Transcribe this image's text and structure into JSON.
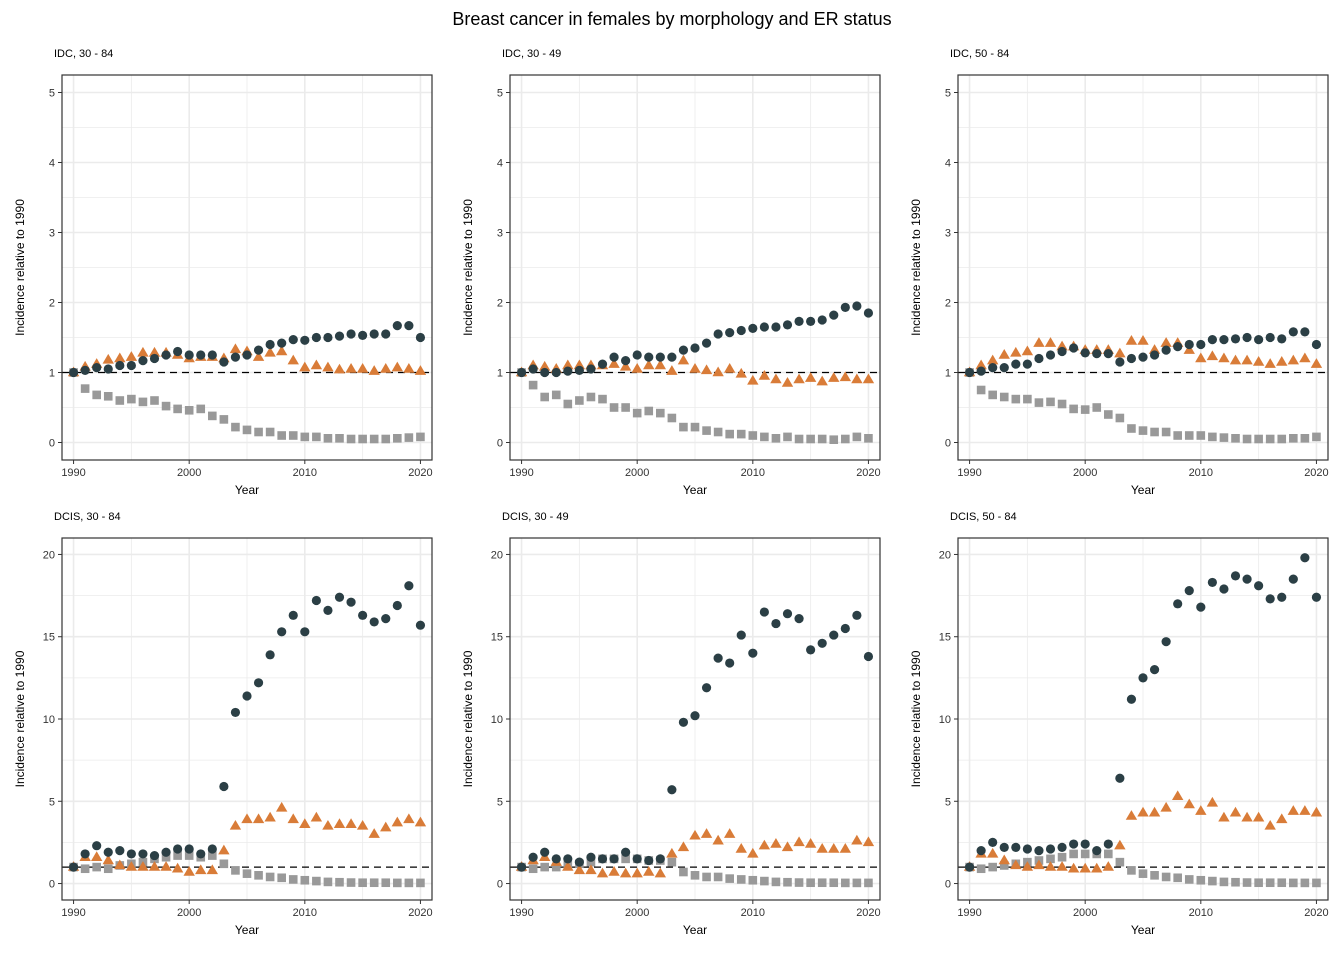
{
  "title": "Breast cancer in females by morphology and ER status",
  "colors": {
    "circle_series": "#2b3f45",
    "triangle_series": "#d97c38",
    "square_series": "#999999",
    "gridline": "#ebebeb",
    "reference_line": "#000000"
  },
  "chart_data": [
    {
      "type": "scatter",
      "title": "IDC, 30 - 84",
      "xlabel": "Year",
      "ylabel": "Incidence relative to 1990",
      "xlim": [
        1989,
        2021
      ],
      "ylim": [
        -0.25,
        5.25
      ],
      "xticks": [
        1990,
        2000,
        2010,
        2020
      ],
      "yticks": [
        0,
        1,
        2,
        3,
        4,
        5
      ],
      "grid": true,
      "reference_line_y": 1,
      "x": [
        1990,
        1991,
        1992,
        1993,
        1994,
        1995,
        1996,
        1997,
        1998,
        1999,
        2000,
        2001,
        2002,
        2003,
        2004,
        2005,
        2006,
        2007,
        2008,
        2009,
        2010,
        2011,
        2012,
        2013,
        2014,
        2015,
        2016,
        2017,
        2018,
        2019,
        2020
      ],
      "series": [
        {
          "marker": "circle",
          "values": [
            1.0,
            1.03,
            1.07,
            1.05,
            1.1,
            1.1,
            1.17,
            1.2,
            1.25,
            1.3,
            1.25,
            1.25,
            1.25,
            1.15,
            1.22,
            1.25,
            1.32,
            1.4,
            1.42,
            1.47,
            1.46,
            1.5,
            1.5,
            1.52,
            1.55,
            1.53,
            1.55,
            1.55,
            1.67,
            1.67,
            1.5
          ]
        },
        {
          "marker": "triangle",
          "values": [
            1.0,
            1.08,
            1.12,
            1.18,
            1.2,
            1.22,
            1.28,
            1.28,
            1.28,
            1.25,
            1.2,
            1.22,
            1.22,
            1.2,
            1.33,
            1.3,
            1.22,
            1.28,
            1.3,
            1.17,
            1.07,
            1.1,
            1.07,
            1.04,
            1.05,
            1.05,
            1.02,
            1.05,
            1.07,
            1.05,
            1.02
          ]
        },
        {
          "marker": "square",
          "values": [
            1.0,
            0.77,
            0.68,
            0.66,
            0.6,
            0.62,
            0.58,
            0.6,
            0.52,
            0.48,
            0.46,
            0.48,
            0.38,
            0.33,
            0.22,
            0.18,
            0.15,
            0.15,
            0.1,
            0.1,
            0.08,
            0.08,
            0.06,
            0.06,
            0.05,
            0.05,
            0.05,
            0.05,
            0.06,
            0.07,
            0.08
          ]
        }
      ]
    },
    {
      "type": "scatter",
      "title": "IDC, 30 - 49",
      "xlabel": "Year",
      "ylabel": "Incidence relative to 1990",
      "xlim": [
        1989,
        2021
      ],
      "ylim": [
        -0.25,
        5.25
      ],
      "xticks": [
        1990,
        2000,
        2010,
        2020
      ],
      "yticks": [
        0,
        1,
        2,
        3,
        4,
        5
      ],
      "grid": true,
      "reference_line_y": 1,
      "x": [
        1990,
        1991,
        1992,
        1993,
        1994,
        1995,
        1996,
        1997,
        1998,
        1999,
        2000,
        2001,
        2002,
        2003,
        2004,
        2005,
        2006,
        2007,
        2008,
        2009,
        2010,
        2011,
        2012,
        2013,
        2014,
        2015,
        2016,
        2017,
        2018,
        2019,
        2020
      ],
      "series": [
        {
          "marker": "circle",
          "values": [
            1.0,
            1.05,
            1.0,
            1.0,
            1.02,
            1.03,
            1.05,
            1.12,
            1.22,
            1.17,
            1.25,
            1.22,
            1.22,
            1.22,
            1.32,
            1.35,
            1.42,
            1.55,
            1.57,
            1.6,
            1.63,
            1.65,
            1.65,
            1.68,
            1.73,
            1.73,
            1.75,
            1.82,
            1.93,
            1.95,
            1.85
          ]
        },
        {
          "marker": "triangle",
          "values": [
            1.0,
            1.1,
            1.08,
            1.05,
            1.1,
            1.1,
            1.1,
            1.1,
            1.12,
            1.08,
            1.05,
            1.1,
            1.1,
            1.02,
            1.17,
            1.05,
            1.03,
            1.0,
            1.05,
            0.98,
            0.88,
            0.95,
            0.9,
            0.85,
            0.9,
            0.92,
            0.87,
            0.92,
            0.93,
            0.9,
            0.9
          ]
        },
        {
          "marker": "square",
          "values": [
            1.0,
            0.82,
            0.65,
            0.68,
            0.55,
            0.6,
            0.65,
            0.62,
            0.5,
            0.5,
            0.42,
            0.45,
            0.42,
            0.35,
            0.22,
            0.22,
            0.17,
            0.15,
            0.12,
            0.12,
            0.1,
            0.08,
            0.06,
            0.08,
            0.05,
            0.05,
            0.05,
            0.04,
            0.05,
            0.08,
            0.06
          ]
        }
      ]
    },
    {
      "type": "scatter",
      "title": "IDC, 50 - 84",
      "xlabel": "Year",
      "ylabel": "Incidence relative to 1990",
      "xlim": [
        1989,
        2021
      ],
      "ylim": [
        -0.25,
        5.25
      ],
      "xticks": [
        1990,
        2000,
        2010,
        2020
      ],
      "yticks": [
        0,
        1,
        2,
        3,
        4,
        5
      ],
      "grid": true,
      "reference_line_y": 1,
      "x": [
        1990,
        1991,
        1992,
        1993,
        1994,
        1995,
        1996,
        1997,
        1998,
        1999,
        2000,
        2001,
        2002,
        2003,
        2004,
        2005,
        2006,
        2007,
        2008,
        2009,
        2010,
        2011,
        2012,
        2013,
        2014,
        2015,
        2016,
        2017,
        2018,
        2019,
        2020
      ],
      "series": [
        {
          "marker": "circle",
          "values": [
            1.0,
            1.02,
            1.07,
            1.07,
            1.12,
            1.12,
            1.2,
            1.25,
            1.3,
            1.35,
            1.28,
            1.27,
            1.27,
            1.15,
            1.2,
            1.22,
            1.25,
            1.32,
            1.37,
            1.4,
            1.4,
            1.47,
            1.47,
            1.48,
            1.5,
            1.47,
            1.5,
            1.48,
            1.58,
            1.58,
            1.4
          ]
        },
        {
          "marker": "triangle",
          "values": [
            1.0,
            1.1,
            1.17,
            1.25,
            1.28,
            1.3,
            1.42,
            1.42,
            1.37,
            1.37,
            1.32,
            1.32,
            1.32,
            1.27,
            1.45,
            1.45,
            1.32,
            1.42,
            1.42,
            1.32,
            1.2,
            1.23,
            1.2,
            1.17,
            1.17,
            1.15,
            1.12,
            1.15,
            1.17,
            1.2,
            1.12
          ]
        },
        {
          "marker": "square",
          "values": [
            1.0,
            0.75,
            0.68,
            0.65,
            0.62,
            0.62,
            0.57,
            0.58,
            0.55,
            0.48,
            0.47,
            0.5,
            0.4,
            0.35,
            0.2,
            0.17,
            0.15,
            0.15,
            0.1,
            0.1,
            0.1,
            0.08,
            0.07,
            0.06,
            0.05,
            0.05,
            0.05,
            0.05,
            0.06,
            0.06,
            0.08
          ]
        }
      ]
    },
    {
      "type": "scatter",
      "title": "DCIS, 30 - 84",
      "xlabel": "Year",
      "ylabel": "Incidence relative to 1990",
      "xlim": [
        1989,
        2021
      ],
      "ylim": [
        -1,
        21
      ],
      "xticks": [
        1990,
        2000,
        2010,
        2020
      ],
      "yticks": [
        0,
        5,
        10,
        15,
        20
      ],
      "grid": true,
      "reference_line_y": 1,
      "x": [
        1990,
        1991,
        1992,
        1993,
        1994,
        1995,
        1996,
        1997,
        1998,
        1999,
        2000,
        2001,
        2002,
        2003,
        2004,
        2005,
        2006,
        2007,
        2008,
        2009,
        2010,
        2011,
        2012,
        2013,
        2014,
        2015,
        2016,
        2017,
        2018,
        2019,
        2020
      ],
      "series": [
        {
          "marker": "circle",
          "values": [
            1.0,
            1.8,
            2.3,
            1.9,
            2.0,
            1.8,
            1.8,
            1.7,
            1.9,
            2.1,
            2.1,
            1.8,
            2.1,
            5.9,
            10.4,
            11.4,
            12.2,
            13.9,
            15.3,
            16.3,
            15.3,
            17.2,
            16.6,
            17.4,
            17.1,
            16.3,
            15.9,
            16.1,
            16.9,
            18.1,
            15.7
          ]
        },
        {
          "marker": "triangle",
          "values": [
            1.0,
            1.6,
            1.6,
            1.4,
            1.1,
            1.0,
            1.0,
            1.0,
            1.0,
            0.9,
            0.7,
            0.8,
            0.8,
            2.0,
            3.5,
            3.9,
            3.9,
            4.0,
            4.6,
            3.9,
            3.6,
            4.0,
            3.5,
            3.6,
            3.6,
            3.5,
            3.0,
            3.4,
            3.7,
            3.9,
            3.7
          ]
        },
        {
          "marker": "square",
          "values": [
            1.0,
            0.9,
            1.0,
            0.9,
            1.1,
            1.2,
            1.3,
            1.5,
            1.6,
            1.7,
            1.7,
            1.6,
            1.7,
            1.2,
            0.8,
            0.6,
            0.5,
            0.4,
            0.35,
            0.25,
            0.2,
            0.15,
            0.1,
            0.08,
            0.06,
            0.05,
            0.05,
            0.05,
            0.04,
            0.04,
            0.04
          ]
        }
      ]
    },
    {
      "type": "scatter",
      "title": "DCIS, 30 - 49",
      "xlabel": "Year",
      "ylabel": "Incidence relative to 1990",
      "xlim": [
        1989,
        2021
      ],
      "ylim": [
        -1,
        21
      ],
      "xticks": [
        1990,
        2000,
        2010,
        2020
      ],
      "yticks": [
        0,
        5,
        10,
        15,
        20
      ],
      "grid": true,
      "reference_line_y": 1,
      "x": [
        1990,
        1991,
        1992,
        1993,
        1994,
        1995,
        1996,
        1997,
        1998,
        1999,
        2000,
        2001,
        2002,
        2003,
        2004,
        2005,
        2006,
        2007,
        2008,
        2009,
        2010,
        2011,
        2012,
        2013,
        2014,
        2015,
        2016,
        2017,
        2018,
        2019,
        2020
      ],
      "series": [
        {
          "marker": "circle",
          "values": [
            1.0,
            1.6,
            1.9,
            1.5,
            1.5,
            1.3,
            1.6,
            1.5,
            1.5,
            1.9,
            1.5,
            1.4,
            1.5,
            5.7,
            9.8,
            10.2,
            11.9,
            13.7,
            13.4,
            15.1,
            14.0,
            16.5,
            15.8,
            16.4,
            16.1,
            14.2,
            14.6,
            15.1,
            15.5,
            16.3,
            13.8
          ]
        },
        {
          "marker": "triangle",
          "values": [
            1.0,
            1.4,
            1.6,
            1.3,
            1.0,
            0.8,
            0.8,
            0.6,
            0.7,
            0.6,
            0.6,
            0.7,
            0.6,
            1.8,
            2.2,
            2.9,
            3.0,
            2.6,
            3.0,
            2.1,
            1.8,
            2.3,
            2.4,
            2.2,
            2.5,
            2.4,
            2.1,
            2.1,
            2.1,
            2.6,
            2.5
          ]
        },
        {
          "marker": "square",
          "values": [
            1.0,
            0.9,
            1.0,
            1.0,
            1.1,
            1.2,
            1.3,
            1.5,
            1.5,
            1.5,
            1.5,
            1.4,
            1.4,
            1.3,
            0.7,
            0.5,
            0.4,
            0.4,
            0.3,
            0.25,
            0.2,
            0.15,
            0.1,
            0.08,
            0.06,
            0.05,
            0.05,
            0.05,
            0.04,
            0.04,
            0.04
          ]
        }
      ]
    },
    {
      "type": "scatter",
      "title": "DCIS, 50 - 84",
      "xlabel": "Year",
      "ylabel": "Incidence relative to 1990",
      "xlim": [
        1989,
        2021
      ],
      "ylim": [
        -1,
        21
      ],
      "xticks": [
        1990,
        2000,
        2010,
        2020
      ],
      "yticks": [
        0,
        5,
        10,
        15,
        20
      ],
      "grid": true,
      "reference_line_y": 1,
      "x": [
        1990,
        1991,
        1992,
        1993,
        1994,
        1995,
        1996,
        1997,
        1998,
        1999,
        2000,
        2001,
        2002,
        2003,
        2004,
        2005,
        2006,
        2007,
        2008,
        2009,
        2010,
        2011,
        2012,
        2013,
        2014,
        2015,
        2016,
        2017,
        2018,
        2019,
        2020
      ],
      "series": [
        {
          "marker": "circle",
          "values": [
            1.0,
            2.0,
            2.5,
            2.2,
            2.2,
            2.1,
            2.0,
            2.1,
            2.2,
            2.4,
            2.4,
            2.0,
            2.4,
            6.4,
            11.2,
            12.5,
            13.0,
            14.7,
            17.0,
            17.8,
            16.8,
            18.3,
            17.9,
            18.7,
            18.5,
            18.1,
            17.3,
            17.4,
            18.5,
            19.8,
            17.4
          ]
        },
        {
          "marker": "triangle",
          "values": [
            1.0,
            1.8,
            1.8,
            1.4,
            1.1,
            1.0,
            1.1,
            1.0,
            1.0,
            0.9,
            0.9,
            0.9,
            1.0,
            2.3,
            4.1,
            4.3,
            4.3,
            4.6,
            5.3,
            4.8,
            4.4,
            4.9,
            4.0,
            4.3,
            4.0,
            4.0,
            3.5,
            3.9,
            4.4,
            4.4,
            4.3
          ]
        },
        {
          "marker": "square",
          "values": [
            1.0,
            0.9,
            1.0,
            1.1,
            1.2,
            1.3,
            1.4,
            1.5,
            1.6,
            1.8,
            1.8,
            1.8,
            1.8,
            1.3,
            0.8,
            0.6,
            0.5,
            0.4,
            0.35,
            0.25,
            0.2,
            0.15,
            0.1,
            0.08,
            0.06,
            0.05,
            0.05,
            0.05,
            0.04,
            0.04,
            0.04
          ]
        }
      ]
    }
  ]
}
